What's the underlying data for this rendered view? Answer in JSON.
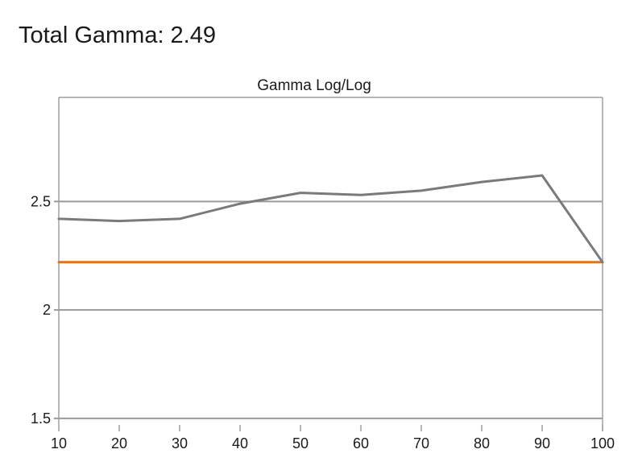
{
  "headline": "Total Gamma: 2.49",
  "colors": {
    "measured_line": "#7a7a7a",
    "target_line": "#d9771a",
    "gridline": "#9a9a9a",
    "frame": "#a0a0a0"
  },
  "chart_data": {
    "type": "line",
    "title": "Gamma Log/Log",
    "xlabel": "",
    "ylabel": "",
    "x": [
      10,
      20,
      30,
      40,
      50,
      60,
      70,
      80,
      90,
      100
    ],
    "xlim": [
      10,
      100
    ],
    "ylim": [
      1.47,
      2.98
    ],
    "x_ticks": [
      "10",
      "20",
      "30",
      "40",
      "50",
      "60",
      "70",
      "80",
      "90",
      "100"
    ],
    "y_ticks": [
      {
        "value": 1.5,
        "label": "1.5"
      },
      {
        "value": 2,
        "label": "2"
      },
      {
        "value": 2.5,
        "label": "2.5"
      }
    ],
    "grid": true,
    "legend": "none",
    "series": [
      {
        "values": [
          2.42,
          2.41,
          2.42,
          2.49,
          2.54,
          2.53,
          2.55,
          2.59,
          2.62,
          2.22
        ]
      },
      {
        "values": [
          2.22,
          2.22,
          2.22,
          2.22,
          2.22,
          2.22,
          2.22,
          2.22,
          2.22,
          2.22
        ]
      }
    ]
  }
}
